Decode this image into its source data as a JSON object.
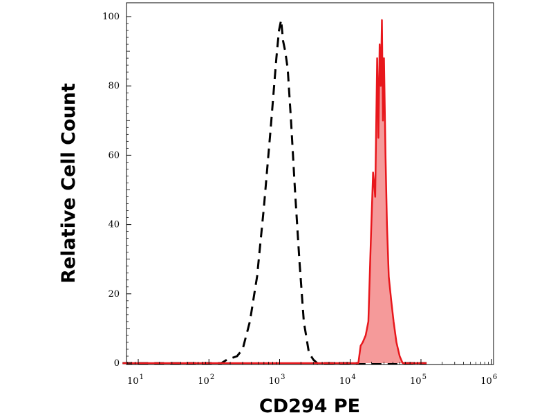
{
  "chart_data": {
    "type": "area",
    "xlabel": "CD294 PE",
    "ylabel": "Relative Cell Count",
    "x_scale": "log",
    "xlim": [
      6,
      120000
    ],
    "ylim": [
      0,
      100
    ],
    "x_ticks": [
      {
        "base": "10",
        "exp": "1",
        "value": 10
      },
      {
        "base": "10",
        "exp": "2",
        "value": 100
      },
      {
        "base": "10",
        "exp": "3",
        "value": 1000
      },
      {
        "base": "10",
        "exp": "4",
        "value": 10000
      },
      {
        "base": "10",
        "exp": "5",
        "value": 100000
      },
      {
        "base": "10",
        "exp": "6",
        "value": 1000000
      }
    ],
    "y_ticks": [
      "0",
      "20",
      "40",
      "60",
      "80",
      "100"
    ],
    "grid": false,
    "series": [
      {
        "style": "dashed",
        "color": "#000000",
        "fill": "none",
        "x": [
          6,
          150,
          180,
          250,
          300,
          380,
          480,
          600,
          750,
          900,
          980,
          1050,
          1120,
          1200,
          1300,
          1450,
          1650,
          1900,
          2200,
          2600,
          3000,
          3400,
          120000
        ],
        "y": [
          0,
          0,
          1,
          2,
          4,
          12,
          25,
          45,
          68,
          88,
          96,
          99,
          93,
          90,
          85,
          70,
          50,
          30,
          12,
          3,
          1,
          0,
          0
        ]
      },
      {
        "style": "solid",
        "color": "#e8171c",
        "fill": "#f59a9a",
        "x": [
          6,
          13000,
          14000,
          15000,
          16500,
          18000,
          19500,
          21000,
          22500,
          24000,
          25000,
          26000,
          27000,
          28000,
          29000,
          30000,
          31500,
          33000,
          35000,
          38000,
          41000,
          45000,
          50000,
          55000,
          58000,
          120000
        ],
        "y": [
          0,
          0,
          5,
          6,
          8,
          12,
          35,
          55,
          48,
          88,
          65,
          92,
          80,
          99,
          70,
          88,
          60,
          40,
          25,
          18,
          12,
          6,
          2,
          0,
          0,
          0
        ]
      }
    ]
  }
}
